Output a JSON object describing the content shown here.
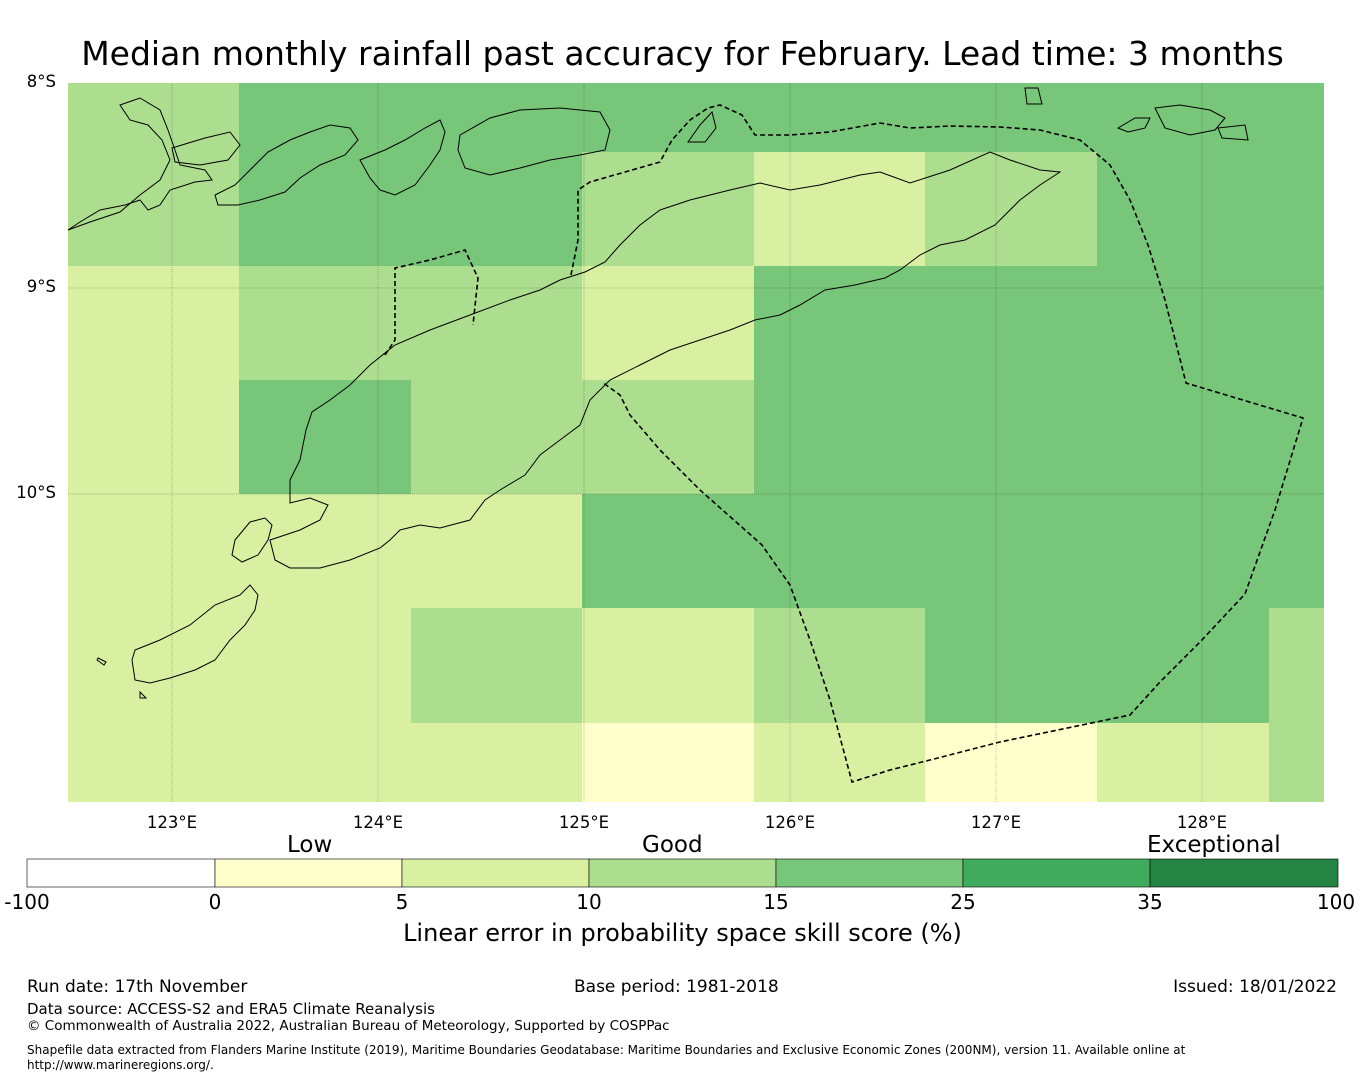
{
  "title": "Median monthly rainfall past accuracy for February. Lead time: 3 months",
  "map": {
    "lat_labels": [
      "8°S",
      "9°S",
      "10°S"
    ],
    "lon_labels": [
      "123°E",
      "124°E",
      "125°E",
      "126°E",
      "127°E",
      "128°E"
    ],
    "grid_skill_classes": [
      [
        "10-15",
        "15-25",
        "15-25",
        "15-25",
        "15-25",
        "15-25",
        "15-25",
        "15-25"
      ],
      [
        "10-15",
        "15-25",
        "15-25",
        "10-15",
        "5-10",
        "10-15",
        "15-25",
        "15-25"
      ],
      [
        "5-10",
        "10-15",
        "10-15",
        "5-10",
        "15-25",
        "15-25",
        "15-25",
        "15-25"
      ],
      [
        "5-10",
        "15-25",
        "10-15",
        "10-15",
        "15-25",
        "15-25",
        "15-25",
        "15-25"
      ],
      [
        "5-10",
        "5-10",
        "5-10",
        "15-25",
        "15-25",
        "15-25",
        "15-25",
        "15-25"
      ],
      [
        "5-10",
        "5-10",
        "10-15",
        "5-10",
        "10-15",
        "15-25",
        "15-25",
        "10-15"
      ],
      [
        "5-10",
        "5-10",
        "5-10",
        "0-5",
        "5-10",
        "0-5",
        "5-10",
        "10-15"
      ]
    ]
  },
  "colorbar": {
    "category_labels": [
      "Low",
      "Good",
      "Exceptional"
    ],
    "ticks": [
      "-100",
      "0",
      "5",
      "10",
      "15",
      "25",
      "35",
      "100"
    ],
    "colors": [
      "#ffffff",
      "#ffffcc",
      "#d9f0a3",
      "#addd8e",
      "#78c679",
      "#41ab5d",
      "#238443"
    ],
    "title": "Linear error in probability space skill score (%)"
  },
  "footer": {
    "run_date": "Run date: 17th November",
    "base_period": "Base period: 1981-2018",
    "issued": "Issued: 18/01/2022",
    "data_source": "Data source: ACCESS-S2 and ERA5 Climate Reanalysis",
    "copyright": "© Commonwealth of Australia 2022, Australian Bureau of Meteorology, Supported by COSPPac",
    "shapefile_line1": "Shapefile data extracted from Flanders Marine Institute (2019), Maritime Boundaries Geodatabase: Maritime Boundaries and Exclusive Economic Zones (200NM), version 11. Available online at",
    "shapefile_line2": "http://www.marineregions.org/."
  }
}
